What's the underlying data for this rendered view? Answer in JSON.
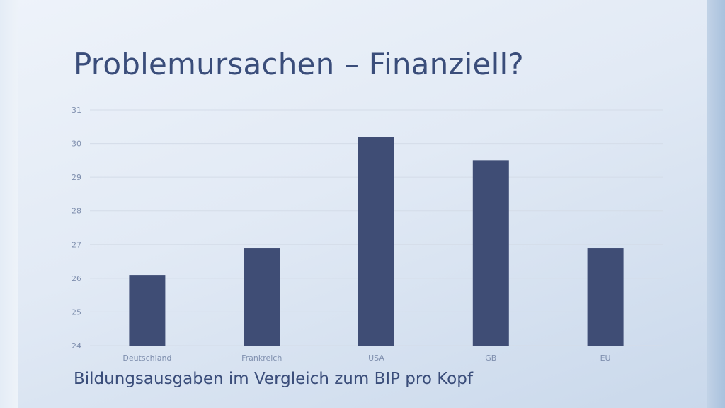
{
  "slide": {
    "title": "Problemursachen – Finanziell?",
    "subtitle": "Bildungsausgaben im Vergleich zum BIP pro Kopf"
  },
  "colors": {
    "bar": "#3f4d75",
    "gridline": "#d4dce8",
    "axis_text": "#7f8fae",
    "title_text": "#3a4d7a"
  },
  "chart_data": {
    "type": "bar",
    "categories": [
      "Deutschland",
      "Frankreich",
      "USA",
      "GB",
      "EU"
    ],
    "values": [
      26.1,
      26.9,
      30.2,
      29.5,
      26.9
    ],
    "xlabel": "",
    "ylabel": "",
    "ylim": [
      24,
      31
    ],
    "yticks": [
      24,
      25,
      26,
      27,
      28,
      29,
      30,
      31
    ],
    "grid": true,
    "legend": "none"
  }
}
